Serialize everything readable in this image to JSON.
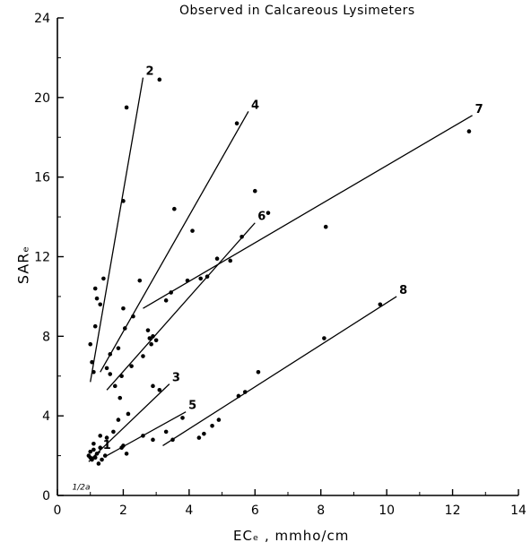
{
  "chart_data": {
    "type": "scatter",
    "title": "Observed in Calcareous Lysimeters",
    "xlabel": "ECₑ , mmho/cm",
    "ylabel": "SARₑ",
    "xlim": [
      0,
      14
    ],
    "ylim": [
      0,
      24
    ],
    "xticks": [
      "0",
      "2",
      "4",
      "6",
      "8",
      "10",
      "12",
      "14"
    ],
    "yticks": [
      "0",
      "4",
      "8",
      "12",
      "16",
      "20",
      "24"
    ],
    "grid": false,
    "legend": "none",
    "corner_annotation": "1/2a",
    "lines": [
      {
        "label": "1",
        "x": [
          0.95,
          1.3
        ],
        "y": [
          1.7,
          2.2
        ]
      },
      {
        "label": "2",
        "x": [
          1.0,
          2.6
        ],
        "y": [
          5.7,
          21.0
        ]
      },
      {
        "label": "3",
        "x": [
          1.0,
          3.4
        ],
        "y": [
          1.8,
          5.6
        ]
      },
      {
        "label": "4",
        "x": [
          1.3,
          5.8
        ],
        "y": [
          6.2,
          19.3
        ]
      },
      {
        "label": "5",
        "x": [
          1.5,
          3.9
        ],
        "y": [
          2.0,
          4.2
        ]
      },
      {
        "label": "6",
        "x": [
          1.5,
          6.0
        ],
        "y": [
          5.3,
          13.7
        ]
      },
      {
        "label": "7",
        "x": [
          2.6,
          12.6
        ],
        "y": [
          9.4,
          19.1
        ]
      },
      {
        "label": "8",
        "x": [
          3.2,
          10.3
        ],
        "y": [
          2.5,
          10.0
        ]
      }
    ],
    "points": [
      [
        0.95,
        2.0
      ],
      [
        1.0,
        2.2
      ],
      [
        1.05,
        1.8
      ],
      [
        1.1,
        2.3
      ],
      [
        1.15,
        1.9
      ],
      [
        1.2,
        2.1
      ],
      [
        1.25,
        1.6
      ],
      [
        1.3,
        2.4
      ],
      [
        1.35,
        1.8
      ],
      [
        1.45,
        2.0
      ],
      [
        1.1,
        2.6
      ],
      [
        1.0,
        1.9
      ],
      [
        1.0,
        7.6
      ],
      [
        1.05,
        6.7
      ],
      [
        1.1,
        6.2
      ],
      [
        1.15,
        10.4
      ],
      [
        1.15,
        8.5
      ],
      [
        1.2,
        9.9
      ],
      [
        1.3,
        9.6
      ],
      [
        1.4,
        10.9
      ],
      [
        1.5,
        6.4
      ],
      [
        1.6,
        7.1
      ],
      [
        2.0,
        14.8
      ],
      [
        2.1,
        19.5
      ],
      [
        3.1,
        20.9
      ],
      [
        1.3,
        3.0
      ],
      [
        1.5,
        2.9
      ],
      [
        1.7,
        3.2
      ],
      [
        1.85,
        3.8
      ],
      [
        2.0,
        2.5
      ],
      [
        2.15,
        4.1
      ],
      [
        2.9,
        5.5
      ],
      [
        3.1,
        5.3
      ],
      [
        1.6,
        6.1
      ],
      [
        1.75,
        5.5
      ],
      [
        1.85,
        7.4
      ],
      [
        1.95,
        6.0
      ],
      [
        2.05,
        8.4
      ],
      [
        2.25,
        6.5
      ],
      [
        2.5,
        10.8
      ],
      [
        2.6,
        7.0
      ],
      [
        2.75,
        8.3
      ],
      [
        2.8,
        7.9
      ],
      [
        2.85,
        7.6
      ],
      [
        2.9,
        8.0
      ],
      [
        3.0,
        7.8
      ],
      [
        3.3,
        9.8
      ],
      [
        3.45,
        10.2
      ],
      [
        3.55,
        14.4
      ],
      [
        3.95,
        10.8
      ],
      [
        4.1,
        13.3
      ],
      [
        4.35,
        10.9
      ],
      [
        4.55,
        11.0
      ],
      [
        4.85,
        11.9
      ],
      [
        5.25,
        11.8
      ],
      [
        5.45,
        18.7
      ],
      [
        5.6,
        13.0
      ],
      [
        6.0,
        15.3
      ],
      [
        6.4,
        14.2
      ],
      [
        8.15,
        13.5
      ],
      [
        12.5,
        18.3
      ],
      [
        1.9,
        4.9
      ],
      [
        2.0,
        9.4
      ],
      [
        2.3,
        9.0
      ],
      [
        1.95,
        2.4
      ],
      [
        2.1,
        2.1
      ],
      [
        2.6,
        3.0
      ],
      [
        2.9,
        2.8
      ],
      [
        3.3,
        3.2
      ],
      [
        3.5,
        2.8
      ],
      [
        3.8,
        3.9
      ],
      [
        4.3,
        2.9
      ],
      [
        4.45,
        3.1
      ],
      [
        4.7,
        3.5
      ],
      [
        4.9,
        3.8
      ],
      [
        5.5,
        5.0
      ],
      [
        5.7,
        5.2
      ],
      [
        6.1,
        6.2
      ],
      [
        8.1,
        7.9
      ],
      [
        9.8,
        9.6
      ]
    ]
  }
}
